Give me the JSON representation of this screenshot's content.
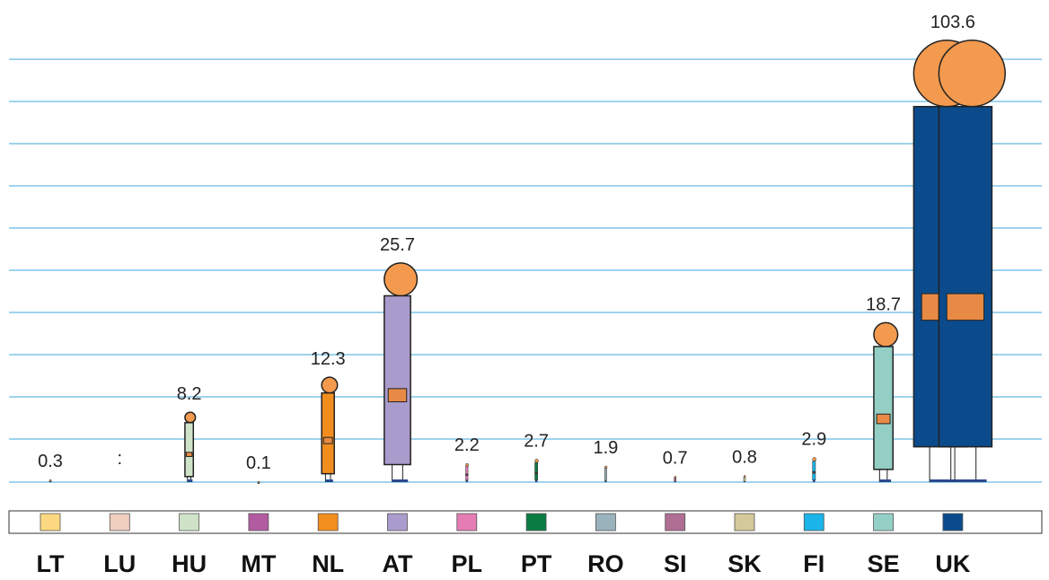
{
  "chart_data": {
    "type": "pictogram",
    "categories": [
      "LT",
      "LU",
      "HU",
      "MT",
      "NL",
      "AT",
      "PL",
      "PT",
      "RO",
      "SI",
      "SK",
      "FI",
      "SE",
      "UK"
    ],
    "values": [
      0.3,
      null,
      8.2,
      0.1,
      12.3,
      25.7,
      2.2,
      2.7,
      1.9,
      0.7,
      0.8,
      2.9,
      18.7,
      103.6
    ],
    "value_labels": [
      "0.3",
      ":",
      "8.2",
      "0.1",
      "12.3",
      "25.7",
      "2.2",
      "2.7",
      "1.9",
      "0.7",
      "0.8",
      "2.9",
      "18.7",
      "103.6"
    ],
    "colors": [
      "#fcd980",
      "#f0cfc0",
      "#cfe3c9",
      "#b25ba0",
      "#f28e1e",
      "#a99bcb",
      "#e57cb4",
      "#0a7c43",
      "#9ab2bc",
      "#b06e94",
      "#d3c99a",
      "#1bb5e9",
      "#94cfc6",
      "#0b4b8c"
    ]
  }
}
